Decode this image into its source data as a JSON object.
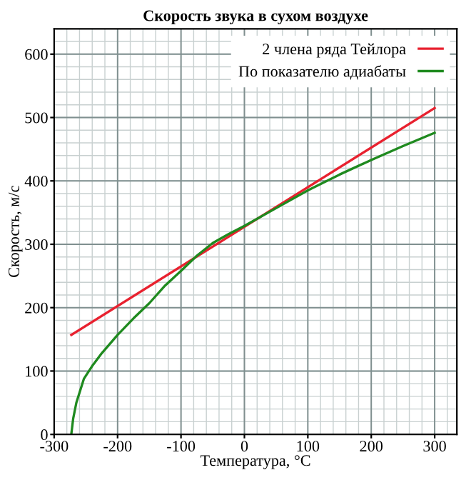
{
  "chart_data": {
    "type": "line",
    "title": "Скорость звука в сухом воздухе",
    "xlabel": "Температура, °C",
    "ylabel": "Скорость, м/с",
    "series": [
      {
        "name": "2 члена ряда Тейлора",
        "color": "#e8212f",
        "x": [
          -273,
          300
        ],
        "values": [
          157,
          515
        ]
      },
      {
        "name": "По показателю адиабаты",
        "color": "#1f8a1f",
        "x": [
          -273,
          -270,
          -265,
          -253,
          -240,
          -225,
          -200,
          -175,
          -150,
          -125,
          -100,
          -75,
          -50,
          -25,
          0,
          50,
          100,
          150,
          200,
          250,
          300
        ],
        "values": [
          0,
          25,
          50,
          88,
          108,
          128,
          157,
          183,
          207,
          235,
          258,
          282,
          302,
          316,
          329,
          357,
          385,
          410,
          433,
          455,
          476
        ]
      }
    ],
    "xlim": [
      -300,
      335
    ],
    "xticks": [
      -300,
      -200,
      -100,
      0,
      100,
      200,
      300
    ],
    "ylim": [
      0,
      640
    ],
    "yticks": [
      0,
      100,
      200,
      300,
      400,
      500,
      600
    ],
    "grid": true,
    "legend": "top right",
    "marker": "none",
    "line_style": "solid"
  }
}
